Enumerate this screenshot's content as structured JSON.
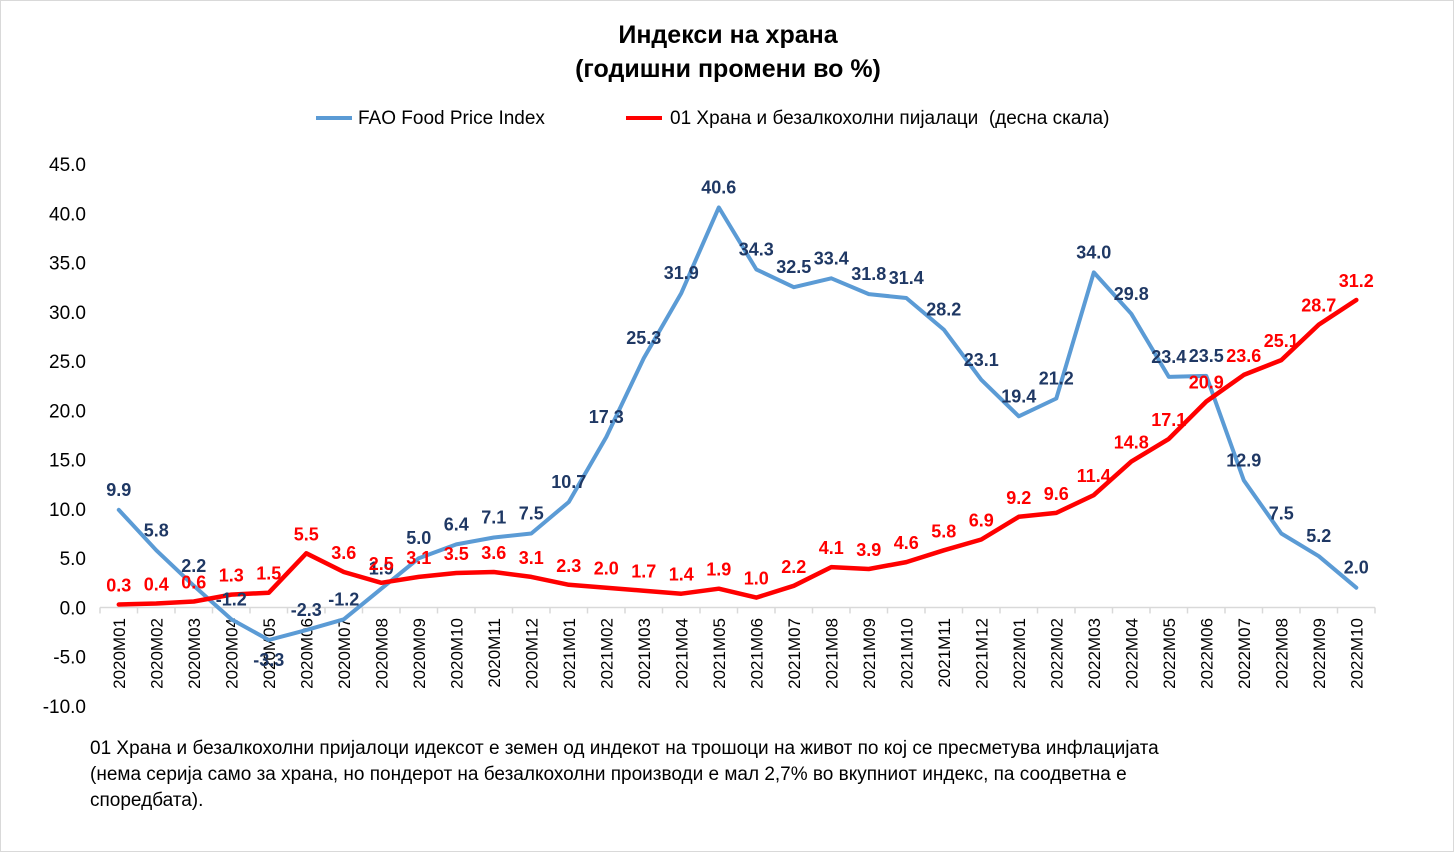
{
  "chart_data": {
    "type": "line",
    "title": [
      "Индекси на храна",
      "(годишни промени во %)"
    ],
    "categories": [
      "2020M01",
      "2020M02",
      "2020M03",
      "2020M04",
      "2020M05",
      "2020M06",
      "2020M07",
      "2020M08",
      "2020M09",
      "2020M10",
      "2020M11",
      "2020M12",
      "2021M01",
      "2021M02",
      "2021M03",
      "2021M04",
      "2021M05",
      "2021M06",
      "2021M07",
      "2021M08",
      "2021M09",
      "2021M10",
      "2021M11",
      "2021M12",
      "2022M01",
      "2022M02",
      "2022M03",
      "2022M04",
      "2022M05",
      "2022M06",
      "2022M07",
      "2022M08",
      "2022M09",
      "2022M10"
    ],
    "ylim": [
      -10,
      45
    ],
    "yticks": [
      "45.0",
      "40.0",
      "35.0",
      "30.0",
      "25.0",
      "20.0",
      "15.0",
      "10.0",
      "5.0",
      "0.0",
      "-5.0",
      "-10.0"
    ],
    "ytick_values": [
      45,
      40,
      35,
      30,
      25,
      20,
      15,
      10,
      5,
      0,
      -5,
      -10
    ],
    "legend_position": "top",
    "series": [
      {
        "name": "FAO Food Price Index",
        "color": "#5b9bd5",
        "label_color": "#1f3864",
        "values": [
          9.9,
          5.8,
          2.2,
          -1.2,
          -3.3,
          -2.3,
          -1.2,
          1.9,
          5.0,
          6.4,
          7.1,
          7.5,
          10.7,
          17.3,
          25.3,
          31.9,
          40.6,
          34.3,
          32.5,
          33.4,
          31.8,
          31.4,
          28.2,
          23.1,
          19.4,
          21.2,
          34.0,
          29.8,
          23.4,
          23.5,
          12.9,
          7.5,
          5.2,
          2.0
        ],
        "labels": [
          "9.9",
          "5.8",
          "2.2",
          "-1.2",
          "-3.3",
          "-2.3",
          "-1.2",
          "1.9",
          "5.0",
          "6.4",
          "7.1",
          "7.5",
          "10.7",
          "17.3",
          "25.3",
          "31.9",
          "40.6",
          "34.3",
          "32.5",
          "33.4",
          "31.8",
          "31.4",
          "28.2",
          "23.1",
          "19.4",
          "21.2",
          "34.0",
          "29.8",
          "23.4",
          "23.5",
          "12.9",
          "7.5",
          "5.2",
          "2.0"
        ]
      },
      {
        "name": "01 Храна и безалкохолни пијалаци  (десна скала)",
        "color": "#ff0000",
        "label_color": "#ff0000",
        "values": [
          0.3,
          0.4,
          0.6,
          1.3,
          1.5,
          5.5,
          3.6,
          2.5,
          3.1,
          3.5,
          3.6,
          3.1,
          2.3,
          2.0,
          1.7,
          1.4,
          1.9,
          1.0,
          2.2,
          4.1,
          3.9,
          4.6,
          5.8,
          6.9,
          9.2,
          9.6,
          11.4,
          14.8,
          17.1,
          20.9,
          23.6,
          25.1,
          28.7,
          31.2
        ],
        "labels": [
          "0.3",
          "0.4",
          "0.6",
          "1.3",
          "1.5",
          "5.5",
          "3.6",
          "2.5",
          "3.1",
          "3.5",
          "3.6",
          "3.1",
          "2.3",
          "2.0",
          "1.7",
          "1.4",
          "1.9",
          "1.0",
          "2.2",
          "4.1",
          "3.9",
          "4.6",
          "5.8",
          "6.9",
          "9.2",
          "9.6",
          "11.4",
          "14.8",
          "17.1",
          "20.9",
          "23.6",
          "25.1",
          "28.7",
          "31.2"
        ]
      }
    ],
    "grid": false
  },
  "footnote": "01 Храна и безалкохолни пријалоци идексот е земен од индекот на трошоци на живот по кој се пресметува инфлацијата (нема серија само за храна, но пондерот на безалкохолни производи е мал 2,7% во вкупниот индекс, па соодветна е споредбата)."
}
